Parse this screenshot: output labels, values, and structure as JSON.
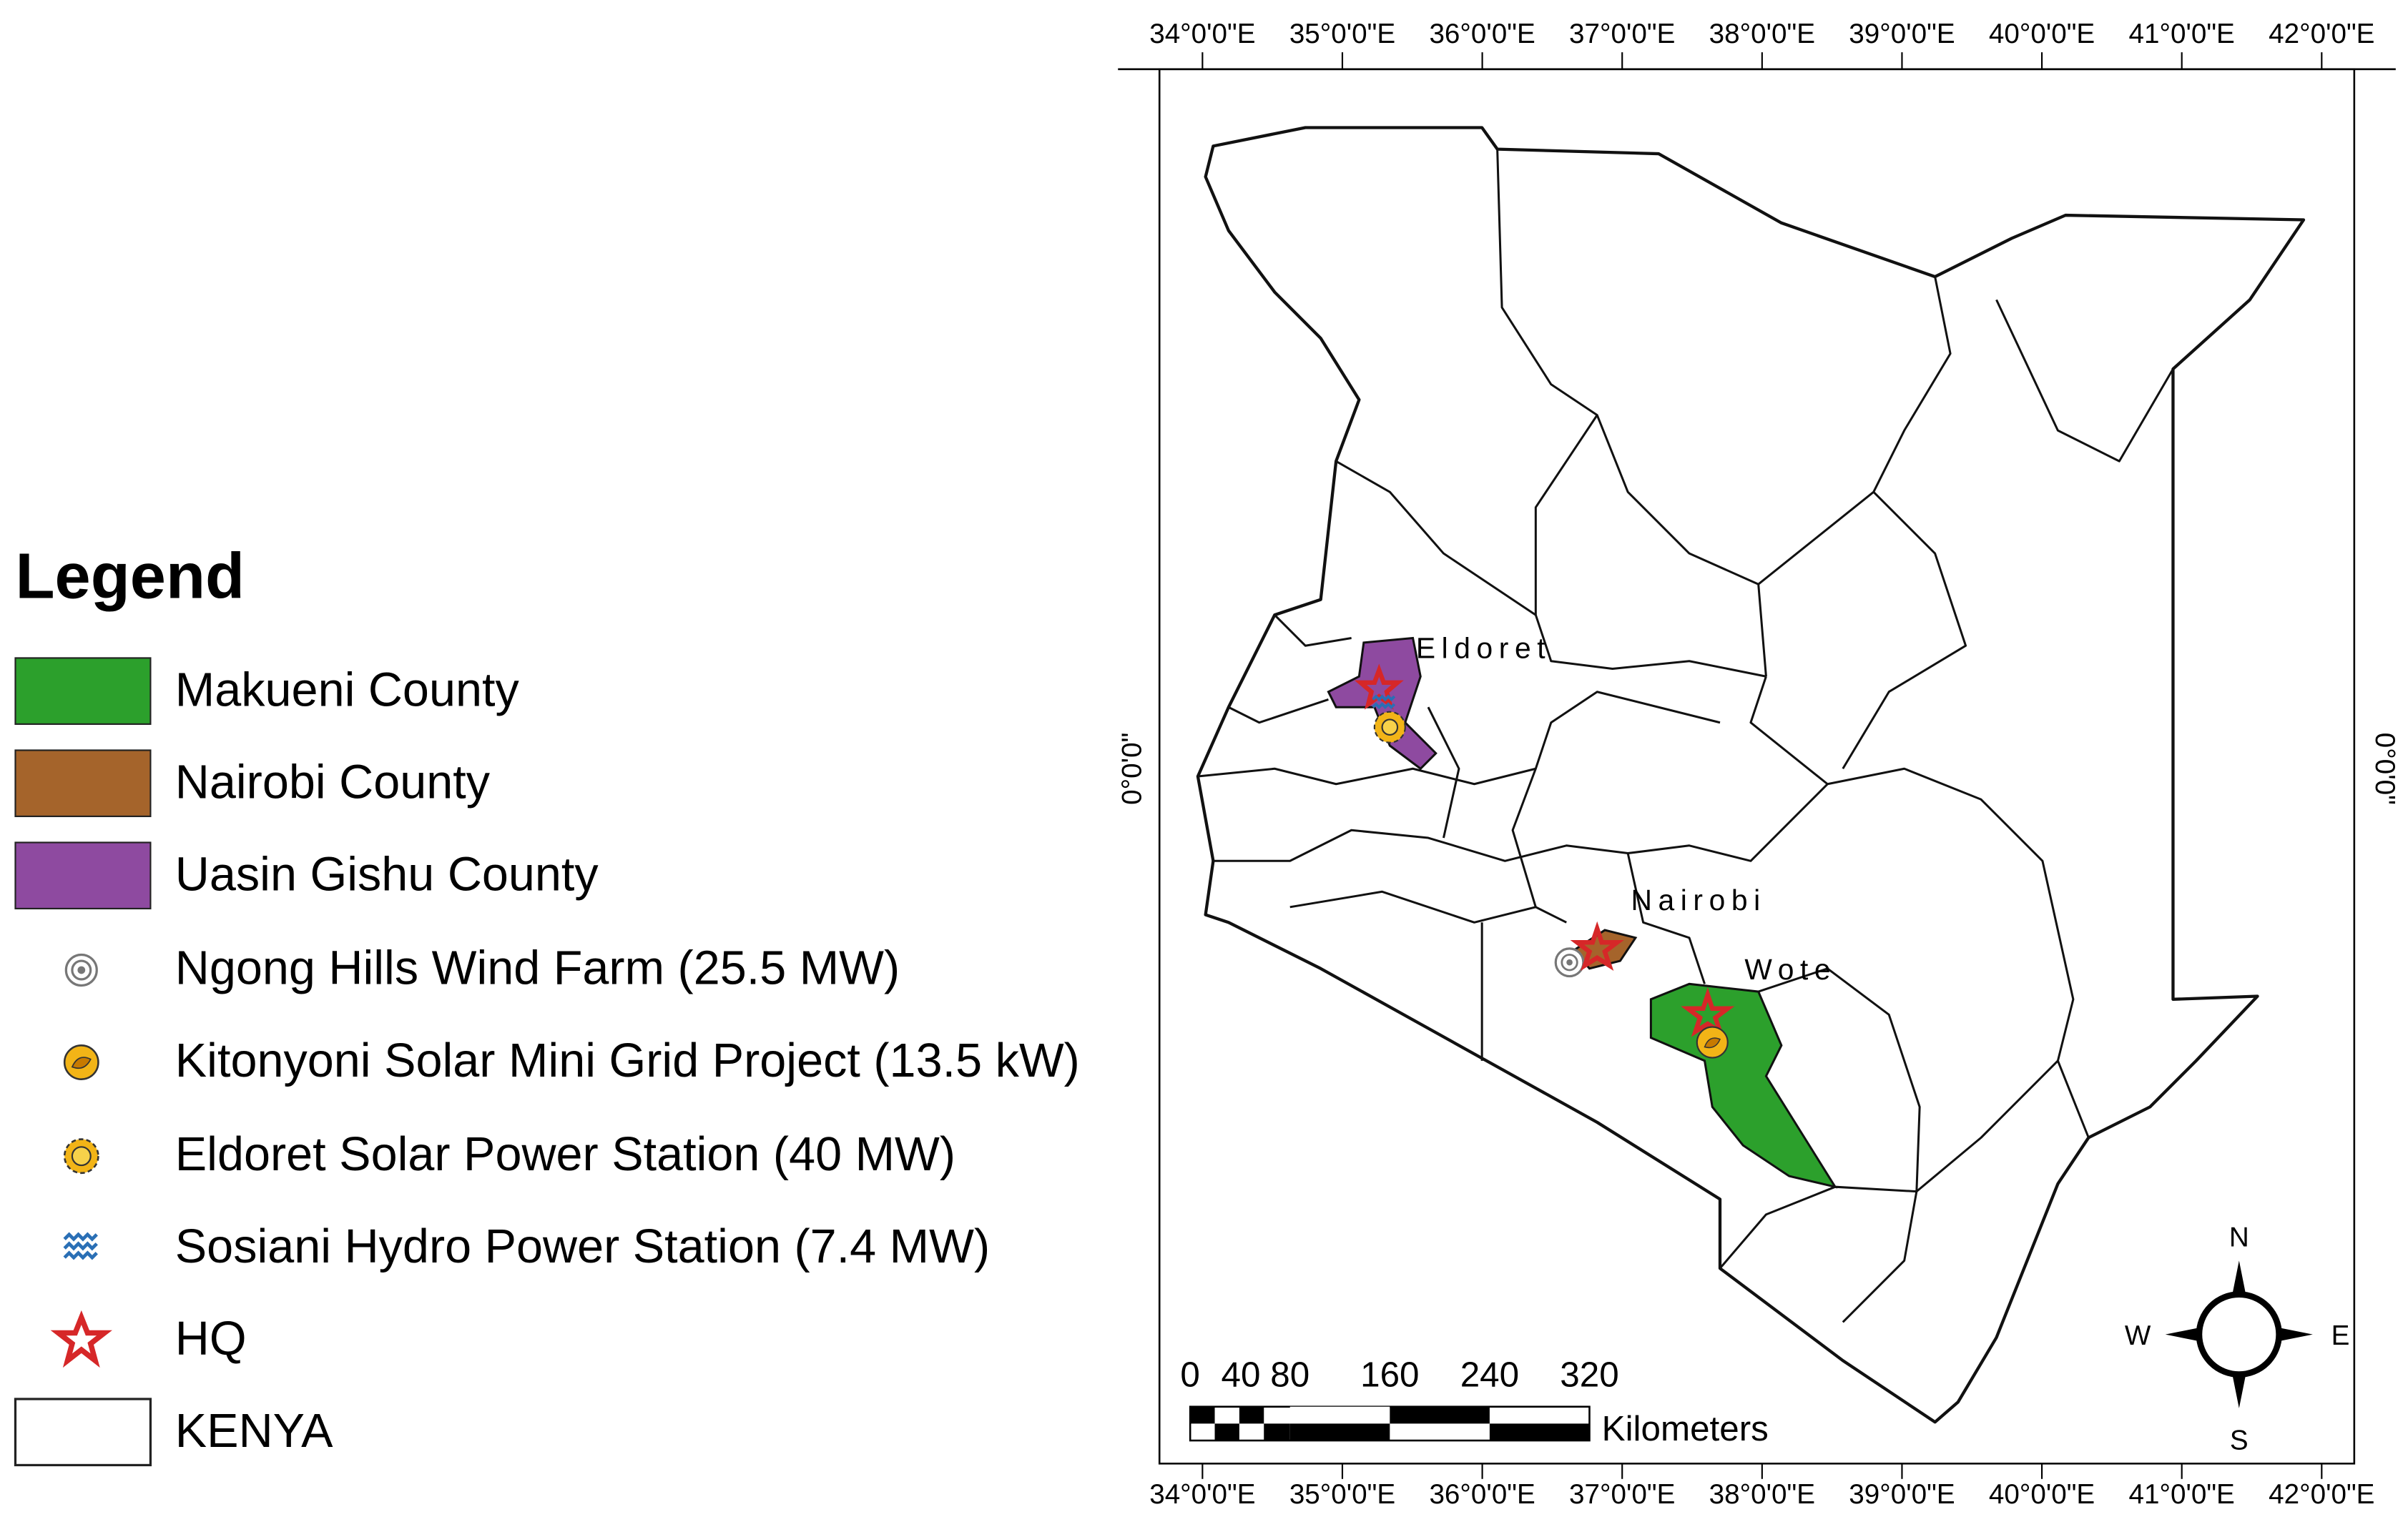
{
  "legend": {
    "title": "Legend",
    "items": [
      {
        "label": "Makueni County"
      },
      {
        "label": "Nairobi County"
      },
      {
        "label": "Uasin Gishu County"
      },
      {
        "label": "Ngong Hills Wind Farm (25.5 MW)"
      },
      {
        "label": "Kitonyoni Solar Mini Grid Project (13.5 kW)"
      },
      {
        "label": "Eldoret Solar Power Station (40 MW)"
      },
      {
        "label": "Sosiani Hydro Power Station (7.4 MW)"
      },
      {
        "label": "HQ"
      },
      {
        "label": "KENYA"
      }
    ]
  },
  "map": {
    "longitude_labels_top": [
      "34°0'0\"E",
      "35°0'0\"E",
      "36°0'0\"E",
      "37°0'0\"E",
      "38°0'0\"E",
      "39°0'0\"E",
      "40°0'0\"E",
      "41°0'0\"E",
      "42°0'0\"E"
    ],
    "longitude_labels_bottom": [
      "34°0'0\"E",
      "35°0'0\"E",
      "36°0'0\"E",
      "37°0'0\"E",
      "38°0'0\"E",
      "39°0'0\"E",
      "40°0'0\"E",
      "41°0'0\"E",
      "42°0'0\"E"
    ],
    "latitude_label_left": "0°0'0\"",
    "latitude_label_right": "0°0'0\"",
    "places": [
      {
        "label": "Eldoret"
      },
      {
        "label": "Nairobi"
      },
      {
        "label": "Wote"
      }
    ]
  },
  "scale_bar": {
    "labels": [
      "0",
      "40",
      "80",
      "160",
      "240",
      "320"
    ],
    "unit": "Kilometers"
  },
  "north_arrow": {
    "north": "N",
    "south": "S",
    "east": "E",
    "west": "W"
  }
}
